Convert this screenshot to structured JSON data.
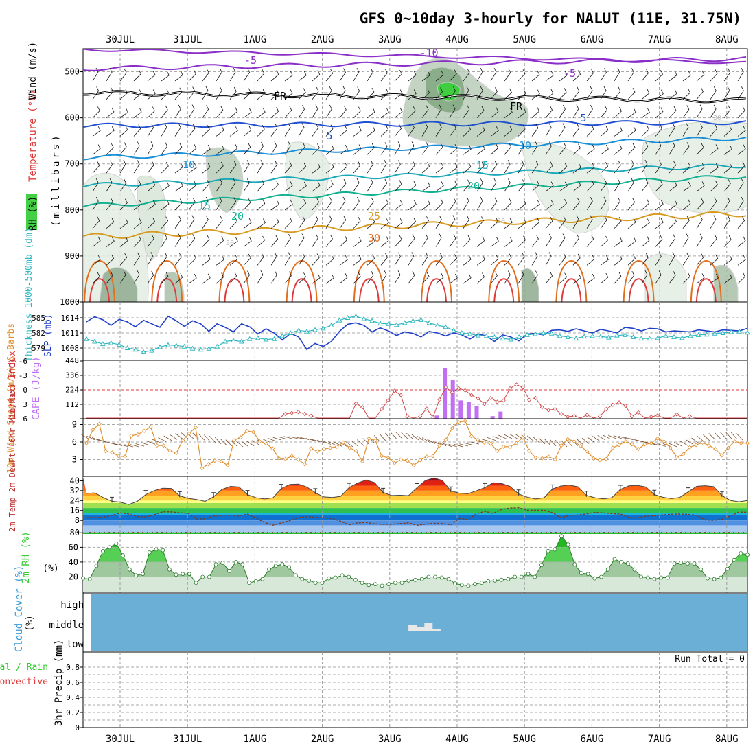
{
  "title": "GFS 0~10day 3-hourly for NALUT (11E, 31.75N)",
  "dates": [
    "30JUL",
    "31JUL",
    "1AUG",
    "2AUG",
    "3AUG",
    "4AUG",
    "5AUG",
    "6AUG",
    "7AUG",
    "8AUG"
  ],
  "colors": {
    "rh_fill": "#c8dfc8",
    "freezing": "#000000",
    "slp": "#1f3fc8",
    "thickness": "#30b8c0",
    "cape": "#c070f0",
    "lifted_index": "#d04848",
    "wind": "#e09030",
    "rh2m": "#33cc33",
    "cloud": "#6baed6"
  },
  "chart_data": [
    {
      "type": "contour",
      "name": "upper-air",
      "ylabel_parts": [
        "RH (%)",
        "Temperature (°C)",
        "Wind (m/s)",
        "(millibars)"
      ],
      "y_ticks": [
        500,
        600,
        700,
        800,
        900,
        1000
      ],
      "ylim": [
        450,
        1000
      ],
      "reversed": true,
      "temperature_labels": [
        "-10",
        "-5",
        "-5",
        "FR",
        "FR",
        "5",
        "5",
        "10",
        "10",
        "15",
        "15",
        "20",
        "20",
        "25",
        "30",
        "30",
        "30",
        "30"
      ],
      "grid": true
    },
    {
      "type": "line",
      "name": "slp-thickness",
      "ylabel_left": "Thickness 1000-500mb (dm)",
      "ylabel_right": "SLP (mb)",
      "left_ticks": [
        "585",
        "582",
        "579"
      ],
      "right_ticks": [
        "1014",
        "1011",
        "1008"
      ],
      "series": [
        {
          "name": "SLP (mb)",
          "values": [
            1013.2,
            1014.2,
            1013.6,
            1012.5,
            1013.7,
            1013.2,
            1012.2,
            1013.5,
            1012.8,
            1012.1,
            1014.3,
            1013.4,
            1012.3,
            1013.4,
            1012.8,
            1011.3,
            1012.8,
            1012.1,
            1011.2,
            1012.8,
            1012.2,
            1010.8,
            1011.8,
            1011.0,
            1009.6,
            1010.9,
            1010.2,
            1007.7,
            1008.9,
            1008.3,
            1009.3,
            1011.3,
            1012.7,
            1013.0,
            1012.5,
            1011.2,
            1012.0,
            1011.4,
            1010.5,
            1011.2,
            1010.9,
            1010.2,
            1011.3,
            1011.0,
            1010.4,
            1011.0,
            1010.6,
            1009.8,
            1010.8,
            1010.4,
            1009.3,
            1010.6,
            1010.2,
            1009.4,
            1010.8,
            1010.9,
            1010.6,
            1011.5,
            1011.6,
            1011.3,
            1011.8,
            1011.4,
            1011.0,
            1011.7,
            1011.4,
            1011.0,
            1012.1,
            1011.9,
            1011.4,
            1011.9,
            1011.8,
            1011.2,
            1011.4,
            1011.3,
            1011.2,
            1011.6,
            1011.4,
            1011.2,
            1011.6,
            1011.5,
            1011.4,
            1011.9
          ]
        },
        {
          "name": "1000-500mb Thickness (dm)",
          "values": [
            580.8,
            580.3,
            579.8,
            580.0,
            579.7,
            579.0,
            578.7,
            578.2,
            578.5,
            579.2,
            579.6,
            579.5,
            579.3,
            578.9,
            578.7,
            578.9,
            579.3,
            580.3,
            580.5,
            580.3,
            580.8,
            581.0,
            580.7,
            580.8,
            581.4,
            582.0,
            582.5,
            582.3,
            582.6,
            582.9,
            583.5,
            584.5,
            585.0,
            585.3,
            584.8,
            584.4,
            583.9,
            583.8,
            583.6,
            584.0,
            584.4,
            584.6,
            584.0,
            583.5,
            583.2,
            582.5,
            582.0,
            581.8,
            581.5,
            581.4,
            581.2,
            580.9,
            580.7,
            581.2,
            581.6,
            581.8,
            582.0,
            581.9,
            581.4,
            581.2,
            580.9,
            581.3,
            581.4,
            581.3,
            581.1,
            581.5,
            581.6,
            581.2,
            580.9,
            580.9,
            581.0,
            581.4,
            581.2,
            581.0,
            581.4,
            581.6,
            581.7,
            581.9,
            582.0,
            582.2,
            582.3,
            582.1
          ]
        }
      ]
    },
    {
      "type": "bar",
      "name": "cape-lifted-index",
      "ylabel_left": "Lifted Index",
      "ylabel_right": "CAPE (J/kg)",
      "li_ticks": [
        "-6",
        "-3",
        "0",
        "3",
        "6"
      ],
      "cape_ticks": [
        "448",
        "336",
        "224",
        "112"
      ],
      "series": [
        {
          "name": "CAPE (J/kg)",
          "x_index": [
            44,
            45,
            46,
            47,
            48,
            49,
            51,
            52
          ],
          "values": [
            25,
            390,
            300,
            140,
            130,
            100,
            20,
            55
          ]
        },
        {
          "name": "Lifted Index",
          "values": [
            7.5,
            7.3,
            7.4,
            7.6,
            7.3,
            7.5,
            7.4,
            7.6,
            7.2,
            7.5,
            7.4,
            7.6,
            7.5,
            7.3,
            7.4,
            7.6,
            7.5,
            7.2,
            7.0,
            6.9,
            6.7,
            6.9,
            7.5,
            7.4,
            7.2,
            7.4,
            6.4,
            6.5,
            7.3,
            7.4,
            6.0,
            5.0,
            4.8,
            4.6,
            5.0,
            5.4,
            6.3,
            7.6,
            7.6,
            7.4,
            7.6,
            7.5,
            2.8,
            3.6,
            6.5,
            6.3,
            4.0,
            2.2,
            0.2,
            1.1,
            5.5,
            6.0,
            5.5,
            3.9,
            5.7,
            2.0,
            -0.5,
            0.5,
            -0.3,
            0.1,
            1.1,
            1.8,
            2.9,
            1.7,
            2.5,
            2.2,
            -0.3,
            -1.1,
            -0.5,
            2.1,
            1.7,
            3.6,
            4.2,
            4.0,
            5.0,
            5.6,
            5.4,
            6.1,
            5.2,
            6.1,
            5.5,
            4.0,
            3.1,
            2.6,
            3.3,
            5.5,
            4.7,
            6.2,
            5.6,
            5.3,
            6.7,
            7.3,
            5.1,
            6.0,
            5.5,
            6.9,
            6.3,
            7.2,
            7.0,
            7.0,
            7.5,
            6.9,
            6.4,
            6.0
          ]
        }
      ]
    },
    {
      "type": "line",
      "name": "surface-wind",
      "ylabel": "10m Wind Speed (m/s) & Barbs",
      "y_ticks": [
        "9",
        "6",
        "3"
      ],
      "ylim": [
        0,
        10
      ],
      "series": [
        {
          "name": "10m Wind Speed",
          "values": [
            5.8,
            8.1,
            9.1,
            4.4,
            4.2,
            3.6,
            3.5,
            7.1,
            7.3,
            7.9,
            8.6,
            5.4,
            5.4,
            4.5,
            4.1,
            6.3,
            7.5,
            8.5,
            1.5,
            2.2,
            2.8,
            2.7,
            2.0,
            6.3,
            6.8,
            7.9,
            7.7,
            6.1,
            5.7,
            4.9,
            3.2,
            3.1,
            3.6,
            3.0,
            2.2,
            4.9,
            4.4,
            4.8,
            5.0,
            5.2,
            5.9,
            5.0,
            4.5,
            2.7,
            6.6,
            6.3,
            3.6,
            3.3,
            2.4,
            3.0,
            2.8,
            2.0,
            2.9,
            3.5,
            3.6,
            5.4,
            6.4,
            8.4,
            9.4,
            9.6,
            7.0,
            6.4,
            5.9,
            5.7,
            4.5,
            5.2,
            5.2,
            5.8,
            6.8,
            4.5,
            3.3,
            3.2,
            3.5,
            3.0,
            5.4,
            6.5,
            6.1,
            5.3,
            4.4,
            3.2,
            2.9,
            3.1,
            5.0,
            5.5,
            6.1,
            5.6,
            4.8,
            5.6,
            5.8,
            6.6,
            6.1,
            5.0,
            3.4,
            3.9,
            5.1,
            5.5,
            5.9,
            5.4,
            4.8,
            3.7,
            5.0,
            6.1,
            5.8,
            5.8
          ]
        }
      ]
    },
    {
      "type": "area",
      "name": "temperature-dewpoint",
      "ylabel": "2m Temp 2m DewPt (6hr Min/Max) (°C)",
      "y_ticks": [
        "40",
        "32",
        "24",
        "16",
        "8",
        "80"
      ],
      "series": [
        {
          "name": "2m Temp",
          "values": [
            29.8,
            30.2,
            26.4,
            23.4,
            22.7,
            20.8,
            23.4,
            28.8,
            32.0,
            34.0,
            33.8,
            27.8,
            25.8,
            24.9,
            23.3,
            27.1,
            33.0,
            35.5,
            35.0,
            28.8,
            26.3,
            25.3,
            26.2,
            33.8,
            37.0,
            37.3,
            35.0,
            30.3,
            27.0,
            26.5,
            27.4,
            34.6,
            38.2,
            40.6,
            38.5,
            30.6,
            28.1,
            28.3,
            28.0,
            34.4,
            40.3,
            42.2,
            40.3,
            31.8,
            30.0,
            29.5,
            31.8,
            34.5,
            38.4,
            37.8,
            35.4,
            29.3,
            26.8,
            25.3,
            26.3,
            33.4,
            35.8,
            36.5,
            35.2,
            28.2,
            26.3,
            25.4,
            26.4,
            33.0,
            35.9,
            36.3,
            35.1,
            29.0,
            26.7,
            25.6,
            26.5,
            31.0,
            35.5,
            36.0,
            35.3,
            28.0,
            24.0,
            23.0,
            24.0
          ]
        },
        {
          "name": "2m DewPt",
          "values": [
            10,
            10.4,
            10.6,
            12.0,
            14.0,
            13.0,
            11.0,
            10.7,
            12.6,
            14.9,
            14.8,
            14.1,
            13.6,
            9.3,
            9.2,
            11.5,
            12.1,
            12.2,
            11.7,
            13.0,
            10.0,
            6.3,
            4.1,
            6.0,
            7.8,
            10.2,
            11.0,
            10.4,
            10.0,
            9.6,
            7.3,
            4.5,
            5.9,
            6.3,
            5.2,
            4.8,
            4.8,
            5.4,
            6.0,
            4.0,
            5.0,
            5.6,
            5.4,
            4.4,
            9.6,
            8.6,
            13.2,
            15.3,
            13.6,
            16.9,
            18.0,
            18.3,
            16.2,
            16.1,
            16.2,
            14.2,
            10.0,
            12.1,
            12.3,
            13.2,
            14.4,
            14.0,
            13.4,
            13.1,
            10.3,
            10.0,
            11.4,
            11.7,
            12.4,
            12.9,
            13.1,
            12.8,
            12.1,
            8.4,
            8.1,
            8.9,
            11.5,
            14.7,
            14.5
          ]
        }
      ]
    },
    {
      "type": "area",
      "name": "relative-humidity",
      "ylabel": "2m RH (%)",
      "y_ticks": [
        "60",
        "40",
        "20"
      ],
      "ylim": [
        0,
        78
      ],
      "series": [
        {
          "name": "2m RH",
          "values": [
            18,
            17,
            35,
            55,
            60,
            65,
            49,
            30,
            22,
            24,
            53,
            57,
            56,
            30,
            23,
            24,
            24,
            12,
            20,
            20,
            37,
            39,
            28,
            40,
            37,
            12,
            14,
            17,
            30,
            35,
            37,
            33,
            22,
            17,
            15,
            12,
            12,
            18,
            19,
            22,
            20,
            16,
            12,
            9,
            10,
            8,
            10,
            12,
            12,
            15,
            16,
            17,
            20,
            20,
            19,
            17,
            11,
            9,
            8,
            10,
            12,
            14,
            15,
            16,
            17,
            20,
            20,
            24,
            20,
            36,
            55,
            57,
            75,
            64,
            37,
            25,
            24,
            18,
            20,
            30,
            44,
            40,
            38,
            30,
            20,
            19,
            17,
            19,
            19,
            38,
            39,
            38,
            38,
            30,
            18,
            17,
            19,
            31,
            43,
            52,
            50
          ]
        }
      ]
    },
    {
      "type": "bar",
      "name": "cloud-cover",
      "ylabel": "Cloud Cover (%)",
      "y_ticks": [
        "high",
        "middle",
        "low"
      ],
      "series": [
        {
          "name": "middle cloud",
          "x_index": [
            40,
            41,
            42,
            43
          ],
          "values": [
            30,
            20,
            40,
            10
          ]
        }
      ]
    },
    {
      "type": "line",
      "name": "precipitation",
      "ylabel": "3hr Precip (mm)",
      "ylabel_left": [
        "Total / Rain",
        "Convective"
      ],
      "y_ticks": [
        "0.8",
        "0.6",
        "0.4",
        "0.2",
        "0"
      ],
      "ylim": [
        0,
        1
      ],
      "run_total_label": "Run Total = 0",
      "series": [
        {
          "name": "Total / Rain",
          "values": []
        },
        {
          "name": "Convective",
          "values": []
        }
      ]
    }
  ]
}
